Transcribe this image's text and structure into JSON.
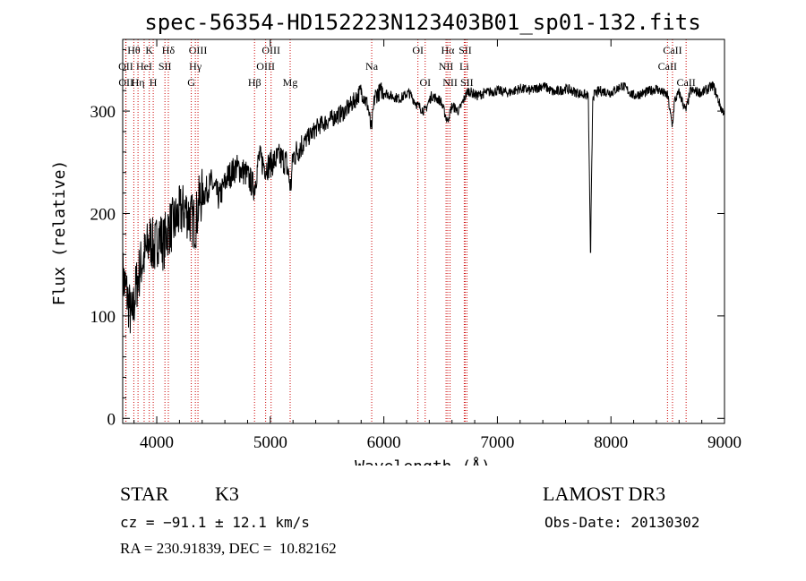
{
  "chart_data": {
    "type": "line",
    "title": "spec-56354-HD152223N123403B01_sp01-132.fits",
    "xlabel": "Wavelength (Å)",
    "ylabel": "Flux (relative)",
    "xlim": [
      3700,
      9000
    ],
    "ylim": [
      -5,
      370
    ],
    "xticks": [
      4000,
      5000,
      6000,
      7000,
      8000,
      9000
    ],
    "yticks": [
      0,
      100,
      200,
      300
    ],
    "series": [
      {
        "name": "flux",
        "x": [
          3700,
          3740,
          3780,
          3820,
          3860,
          3900,
          3940,
          3980,
          4020,
          4060,
          4100,
          4150,
          4200,
          4250,
          4300,
          4340,
          4380,
          4420,
          4480,
          4550,
          4620,
          4700,
          4780,
          4860,
          4900,
          4960,
          5020,
          5080,
          5140,
          5180,
          5200,
          5260,
          5340,
          5420,
          5500,
          5580,
          5660,
          5740,
          5800,
          5860,
          5890,
          5920,
          5980,
          6060,
          6140,
          6220,
          6300,
          6360,
          6420,
          6500,
          6560,
          6600,
          6660,
          6740,
          6820,
          6900,
          7000,
          7100,
          7200,
          7300,
          7400,
          7500,
          7600,
          7700,
          7800,
          7820,
          7840,
          7900,
          8000,
          8100,
          8200,
          8300,
          8400,
          8500,
          8540,
          8560,
          8600,
          8660,
          8700,
          8800,
          8900,
          8980,
          9000
        ],
        "y": [
          140,
          120,
          95,
          130,
          150,
          160,
          175,
          165,
          180,
          170,
          185,
          190,
          200,
          205,
          195,
          190,
          215,
          220,
          230,
          215,
          235,
          245,
          240,
          225,
          255,
          245,
          250,
          255,
          250,
          225,
          255,
          265,
          275,
          285,
          290,
          295,
          300,
          310,
          320,
          305,
          280,
          315,
          320,
          315,
          312,
          318,
          305,
          300,
          315,
          310,
          290,
          305,
          300,
          320,
          315,
          318,
          320,
          318,
          322,
          320,
          325,
          318,
          322,
          318,
          315,
          162,
          315,
          320,
          318,
          325,
          315,
          318,
          322,
          315,
          285,
          310,
          318,
          300,
          320,
          318,
          325,
          300,
          300
        ]
      }
    ],
    "lines": [
      {
        "label": "Hθ",
        "wl": 3798,
        "row": 1
      },
      {
        "label": "OII",
        "wl": 3727,
        "row": 2
      },
      {
        "label": "OII",
        "wl": 3729,
        "row": 3
      },
      {
        "label": "K",
        "wl": 3934,
        "row": 1
      },
      {
        "label": "HeI",
        "wl": 3889,
        "row": 2
      },
      {
        "label": "Hη",
        "wl": 3835,
        "row": 3
      },
      {
        "label": "Hδ",
        "wl": 4102,
        "row": 1
      },
      {
        "label": "SII",
        "wl": 4072,
        "row": 2
      },
      {
        "label": "H",
        "wl": 3969,
        "row": 3
      },
      {
        "label": "OIII",
        "wl": 4363,
        "row": 1
      },
      {
        "label": "Hγ",
        "wl": 4340,
        "row": 2
      },
      {
        "label": "G",
        "wl": 4304,
        "row": 3
      },
      {
        "label": "OIII",
        "wl": 5007,
        "row": 1
      },
      {
        "label": "OIII",
        "wl": 4959,
        "row": 2
      },
      {
        "label": "Hβ",
        "wl": 4861,
        "row": 3
      },
      {
        "label": "Mg",
        "wl": 5175,
        "row": 3
      },
      {
        "label": "Na",
        "wl": 5893,
        "row": 2
      },
      {
        "label": "OI",
        "wl": 6300,
        "row": 1
      },
      {
        "label": "OI",
        "wl": 6364,
        "row": 3
      },
      {
        "label": "Hα",
        "wl": 6563,
        "row": 1
      },
      {
        "label": "NII",
        "wl": 6548,
        "row": 2
      },
      {
        "label": "NII",
        "wl": 6583,
        "row": 3
      },
      {
        "label": "SII",
        "wl": 6716,
        "row": 1
      },
      {
        "label": "Li",
        "wl": 6708,
        "row": 2
      },
      {
        "label": "SII",
        "wl": 6731,
        "row": 3
      },
      {
        "label": "CaII",
        "wl": 8542,
        "row": 1
      },
      {
        "label": "CaII",
        "wl": 8498,
        "row": 2
      },
      {
        "label": "CaII",
        "wl": 8662,
        "row": 3
      }
    ]
  },
  "info": {
    "class": "STAR",
    "subclass": "K3",
    "survey": "LAMOST DR3",
    "cz": "cz = −91.1 ± 12.1 km/s",
    "obs_date": "Obs-Date: 20130302",
    "coords": "RA = 230.91839, DEC =  10.82162"
  }
}
